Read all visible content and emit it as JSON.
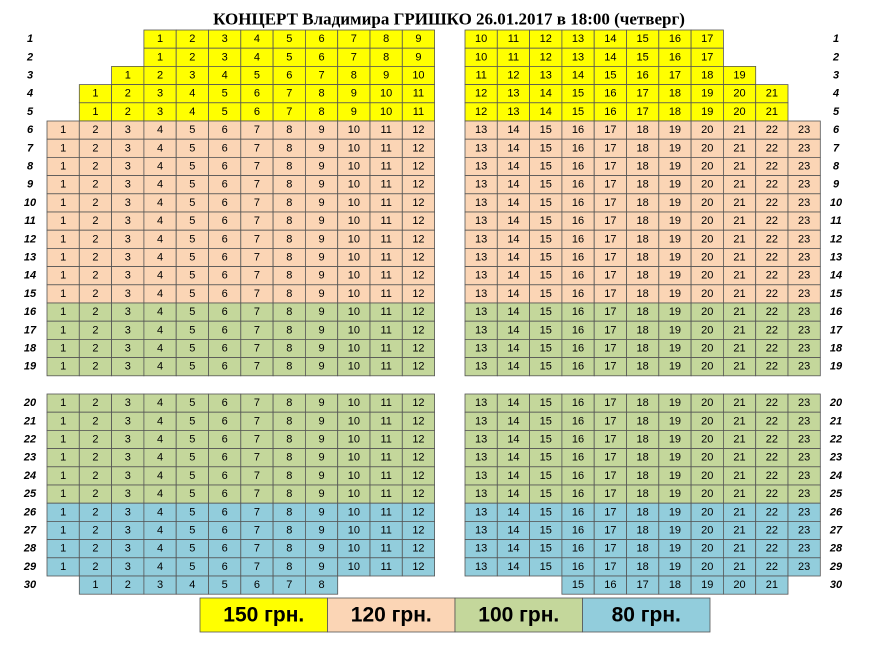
{
  "title": "КОНЦЕРТ  Владимира  ГРИШКО  26.01.2017 в 18:00 (четверг)",
  "tiers": [
    {
      "label": "150 грн.",
      "color": "#ffff00"
    },
    {
      "label": "120 грн.",
      "color": "#fbd5b5"
    },
    {
      "label": "100 грн.",
      "color": "#c4d79b"
    },
    {
      "label": "80 грн.",
      "color": "#92cddc"
    }
  ],
  "rows": [
    {
      "label": 1,
      "tier": 0,
      "seats": [
        null,
        null,
        null,
        1,
        2,
        3,
        4,
        5,
        6,
        7,
        8,
        9,
        10,
        11,
        12,
        13,
        14,
        15,
        16,
        17,
        null,
        null,
        null
      ]
    },
    {
      "label": 2,
      "tier": 0,
      "seats": [
        null,
        null,
        null,
        1,
        2,
        3,
        4,
        5,
        6,
        7,
        8,
        9,
        10,
        11,
        12,
        13,
        14,
        15,
        16,
        17,
        null,
        null,
        null
      ]
    },
    {
      "label": 3,
      "tier": 0,
      "seats": [
        null,
        null,
        1,
        2,
        3,
        4,
        5,
        6,
        7,
        8,
        9,
        10,
        11,
        12,
        13,
        14,
        15,
        16,
        17,
        18,
        19,
        null,
        null
      ]
    },
    {
      "label": 4,
      "tier": 0,
      "seats": [
        null,
        1,
        2,
        3,
        4,
        5,
        6,
        7,
        8,
        9,
        10,
        11,
        12,
        13,
        14,
        15,
        16,
        17,
        18,
        19,
        20,
        21,
        null
      ]
    },
    {
      "label": 5,
      "tier": 0,
      "seats": [
        null,
        1,
        2,
        3,
        4,
        5,
        6,
        7,
        8,
        9,
        10,
        11,
        12,
        13,
        14,
        15,
        16,
        17,
        18,
        19,
        20,
        21,
        null
      ]
    },
    {
      "label": 6,
      "tier": 1,
      "seats": [
        1,
        2,
        3,
        4,
        5,
        6,
        7,
        8,
        9,
        10,
        11,
        12,
        13,
        14,
        15,
        16,
        17,
        18,
        19,
        20,
        21,
        22,
        23
      ]
    },
    {
      "label": 7,
      "tier": 1,
      "seats": [
        1,
        2,
        3,
        4,
        5,
        6,
        7,
        8,
        9,
        10,
        11,
        12,
        13,
        14,
        15,
        16,
        17,
        18,
        19,
        20,
        21,
        22,
        23
      ]
    },
    {
      "label": 8,
      "tier": 1,
      "seats": [
        1,
        2,
        3,
        4,
        5,
        6,
        7,
        8,
        9,
        10,
        11,
        12,
        13,
        14,
        15,
        16,
        17,
        18,
        19,
        20,
        21,
        22,
        23
      ]
    },
    {
      "label": 9,
      "tier": 1,
      "seats": [
        1,
        2,
        3,
        4,
        5,
        6,
        7,
        8,
        9,
        10,
        11,
        12,
        13,
        14,
        15,
        16,
        17,
        18,
        19,
        20,
        21,
        22,
        23
      ]
    },
    {
      "label": 10,
      "tier": 1,
      "seats": [
        1,
        2,
        3,
        4,
        5,
        6,
        7,
        8,
        9,
        10,
        11,
        12,
        13,
        14,
        15,
        16,
        17,
        18,
        19,
        20,
        21,
        22,
        23
      ]
    },
    {
      "label": 11,
      "tier": 1,
      "seats": [
        1,
        2,
        3,
        4,
        5,
        6,
        7,
        8,
        9,
        10,
        11,
        12,
        13,
        14,
        15,
        16,
        17,
        18,
        19,
        20,
        21,
        22,
        23
      ]
    },
    {
      "label": 12,
      "tier": 1,
      "seats": [
        1,
        2,
        3,
        4,
        5,
        6,
        7,
        8,
        9,
        10,
        11,
        12,
        13,
        14,
        15,
        16,
        17,
        18,
        19,
        20,
        21,
        22,
        23
      ]
    },
    {
      "label": 13,
      "tier": 1,
      "seats": [
        1,
        2,
        3,
        4,
        5,
        6,
        7,
        8,
        9,
        10,
        11,
        12,
        13,
        14,
        15,
        16,
        17,
        18,
        19,
        20,
        21,
        22,
        23
      ]
    },
    {
      "label": 14,
      "tier": 1,
      "seats": [
        1,
        2,
        3,
        4,
        5,
        6,
        7,
        8,
        9,
        10,
        11,
        12,
        13,
        14,
        15,
        16,
        17,
        18,
        19,
        20,
        21,
        22,
        23
      ]
    },
    {
      "label": 15,
      "tier": 1,
      "seats": [
        1,
        2,
        3,
        4,
        5,
        6,
        7,
        8,
        9,
        10,
        11,
        12,
        13,
        14,
        15,
        16,
        17,
        18,
        19,
        20,
        21,
        22,
        23
      ]
    },
    {
      "label": 16,
      "tier": 2,
      "seats": [
        1,
        2,
        3,
        4,
        5,
        6,
        7,
        8,
        9,
        10,
        11,
        12,
        13,
        14,
        15,
        16,
        17,
        18,
        19,
        20,
        21,
        22,
        23
      ]
    },
    {
      "label": 17,
      "tier": 2,
      "seats": [
        1,
        2,
        3,
        4,
        5,
        6,
        7,
        8,
        9,
        10,
        11,
        12,
        13,
        14,
        15,
        16,
        17,
        18,
        19,
        20,
        21,
        22,
        23
      ]
    },
    {
      "label": 18,
      "tier": 2,
      "seats": [
        1,
        2,
        3,
        4,
        5,
        6,
        7,
        8,
        9,
        10,
        11,
        12,
        13,
        14,
        15,
        16,
        17,
        18,
        19,
        20,
        21,
        22,
        23
      ]
    },
    {
      "label": 19,
      "tier": 2,
      "seats": [
        1,
        2,
        3,
        4,
        5,
        6,
        7,
        8,
        9,
        10,
        11,
        12,
        13,
        14,
        15,
        16,
        17,
        18,
        19,
        20,
        21,
        22,
        23
      ]
    },
    {
      "label": 20,
      "tier": 2,
      "seats": [
        1,
        2,
        3,
        4,
        5,
        6,
        7,
        8,
        9,
        10,
        11,
        12,
        13,
        14,
        15,
        16,
        17,
        18,
        19,
        20,
        21,
        22,
        23
      ]
    },
    {
      "label": 21,
      "tier": 2,
      "seats": [
        1,
        2,
        3,
        4,
        5,
        6,
        7,
        8,
        9,
        10,
        11,
        12,
        13,
        14,
        15,
        16,
        17,
        18,
        19,
        20,
        21,
        22,
        23
      ]
    },
    {
      "label": 22,
      "tier": 2,
      "seats": [
        1,
        2,
        3,
        4,
        5,
        6,
        7,
        8,
        9,
        10,
        11,
        12,
        13,
        14,
        15,
        16,
        17,
        18,
        19,
        20,
        21,
        22,
        23
      ]
    },
    {
      "label": 23,
      "tier": 2,
      "seats": [
        1,
        2,
        3,
        4,
        5,
        6,
        7,
        8,
        9,
        10,
        11,
        12,
        13,
        14,
        15,
        16,
        17,
        18,
        19,
        20,
        21,
        22,
        23
      ]
    },
    {
      "label": 24,
      "tier": 2,
      "seats": [
        1,
        2,
        3,
        4,
        5,
        6,
        7,
        8,
        9,
        10,
        11,
        12,
        13,
        14,
        15,
        16,
        17,
        18,
        19,
        20,
        21,
        22,
        23
      ]
    },
    {
      "label": 25,
      "tier": 2,
      "seats": [
        1,
        2,
        3,
        4,
        5,
        6,
        7,
        8,
        9,
        10,
        11,
        12,
        13,
        14,
        15,
        16,
        17,
        18,
        19,
        20,
        21,
        22,
        23
      ]
    },
    {
      "label": 26,
      "tier": 3,
      "seats": [
        1,
        2,
        3,
        4,
        5,
        6,
        7,
        8,
        9,
        10,
        11,
        12,
        13,
        14,
        15,
        16,
        17,
        18,
        19,
        20,
        21,
        22,
        23
      ]
    },
    {
      "label": 27,
      "tier": 3,
      "seats": [
        1,
        2,
        3,
        4,
        5,
        6,
        7,
        8,
        9,
        10,
        11,
        12,
        13,
        14,
        15,
        16,
        17,
        18,
        19,
        20,
        21,
        22,
        23
      ]
    },
    {
      "label": 28,
      "tier": 3,
      "seats": [
        1,
        2,
        3,
        4,
        5,
        6,
        7,
        8,
        9,
        10,
        11,
        12,
        13,
        14,
        15,
        16,
        17,
        18,
        19,
        20,
        21,
        22,
        23
      ]
    },
    {
      "label": 29,
      "tier": 3,
      "seats": [
        1,
        2,
        3,
        4,
        5,
        6,
        7,
        8,
        9,
        10,
        11,
        12,
        13,
        14,
        15,
        16,
        17,
        18,
        19,
        20,
        21,
        22,
        23
      ]
    },
    {
      "label": 30,
      "tier": 3,
      "seats": [
        null,
        1,
        2,
        3,
        4,
        5,
        6,
        7,
        8,
        null,
        null,
        null,
        null,
        null,
        null,
        15,
        16,
        17,
        18,
        19,
        20,
        21,
        null
      ]
    }
  ]
}
